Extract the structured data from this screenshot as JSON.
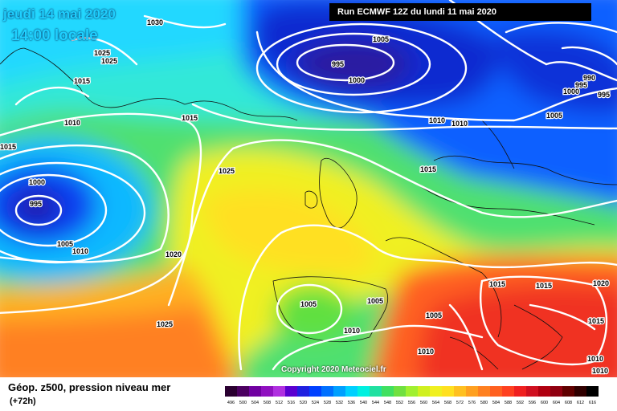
{
  "header": {
    "date": "jeudi 14 mai 2020",
    "time": "14:00 locale",
    "run": "Run ECMWF 12Z du lundi 11 mai 2020"
  },
  "copyright": "Copyright 2020 Meteociel.fr",
  "footer": {
    "title": "Géop. z500, pression niveau mer",
    "subtitle": "(+72h)"
  },
  "legend": {
    "labels": [
      "496",
      "500",
      "504",
      "508",
      "512",
      "516",
      "520",
      "524",
      "528",
      "532",
      "536",
      "540",
      "544",
      "548",
      "552",
      "556",
      "560",
      "564",
      "568",
      "572",
      "576",
      "580",
      "584",
      "588",
      "592",
      "596",
      "600",
      "604",
      "608",
      "612",
      "616"
    ],
    "colors": [
      "#2a0030",
      "#4b0060",
      "#7000a0",
      "#9010c0",
      "#b030e0",
      "#5a00d0",
      "#2020e0",
      "#0040ff",
      "#0070ff",
      "#00a0ff",
      "#00d0ff",
      "#00f0e0",
      "#20e0a0",
      "#40e060",
      "#70e040",
      "#a0f030",
      "#d0f020",
      "#f0f020",
      "#ffe020",
      "#ffc020",
      "#ffa020",
      "#ff8020",
      "#ff6020",
      "#ff4020",
      "#f02020",
      "#d01020",
      "#b00010",
      "#900010",
      "#600000",
      "#300000",
      "#000000"
    ]
  },
  "pressure_labels": [
    {
      "text": "1030"
    },
    {
      "text": "1025"
    },
    {
      "text": "1025"
    },
    {
      "text": "1015"
    },
    {
      "text": "1010"
    },
    {
      "text": "1015"
    },
    {
      "text": "1015"
    },
    {
      "text": "1000"
    },
    {
      "text": "995"
    },
    {
      "text": "1005"
    },
    {
      "text": "1010"
    },
    {
      "text": "1020"
    },
    {
      "text": "1025"
    },
    {
      "text": "1025"
    },
    {
      "text": "1005"
    },
    {
      "text": "995"
    },
    {
      "text": "1000"
    },
    {
      "text": "1010"
    },
    {
      "text": "1010"
    },
    {
      "text": "1015"
    },
    {
      "text": "990"
    },
    {
      "text": "995"
    },
    {
      "text": "1000"
    },
    {
      "text": "995"
    },
    {
      "text": "1005"
    },
    {
      "text": "1005"
    },
    {
      "text": "1005"
    },
    {
      "text": "1010"
    },
    {
      "text": "1010"
    },
    {
      "text": "1005"
    },
    {
      "text": "1015"
    },
    {
      "text": "1015"
    },
    {
      "text": "1020"
    },
    {
      "text": "1015"
    },
    {
      "text": "1010"
    },
    {
      "text": "1010"
    }
  ]
}
